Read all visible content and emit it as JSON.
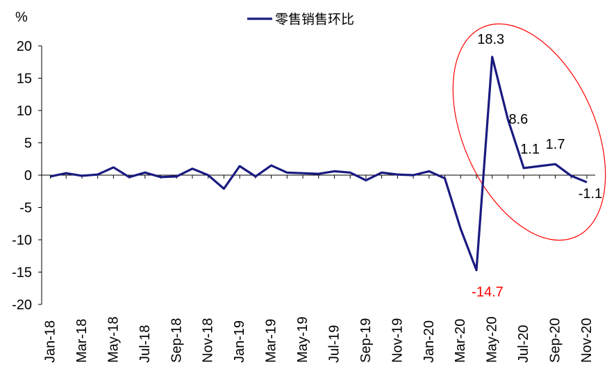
{
  "chart_data": {
    "type": "line",
    "ylabel": "%",
    "ylim": [
      -20,
      20
    ],
    "yticks": [
      20,
      15,
      10,
      5,
      0,
      -5,
      -10,
      -15,
      -20
    ],
    "legend_position": "top-center",
    "x": [
      "Jan-18",
      "Feb-18",
      "Mar-18",
      "Apr-18",
      "May-18",
      "Jun-18",
      "Jul-18",
      "Aug-18",
      "Sep-18",
      "Oct-18",
      "Nov-18",
      "Dec-18",
      "Jan-19",
      "Feb-19",
      "Mar-19",
      "Apr-19",
      "May-19",
      "Jun-19",
      "Jul-19",
      "Aug-19",
      "Sep-19",
      "Oct-19",
      "Nov-19",
      "Dec-19",
      "Jan-20",
      "Feb-20",
      "Mar-20",
      "Apr-20",
      "May-20",
      "Jun-20",
      "Jul-20",
      "Aug-20",
      "Sep-20",
      "Oct-20",
      "Nov-20"
    ],
    "x_tick_labels": [
      "Jan-18",
      "Mar-18",
      "May-18",
      "Jul-18",
      "Sep-18",
      "Nov-18",
      "Jan-19",
      "Mar-19",
      "May-19",
      "Jul-19",
      "Sep-19",
      "Nov-19",
      "Jan-20",
      "Mar-20",
      "May-20",
      "Jul-20",
      "Sep-20",
      "Nov-20"
    ],
    "series": [
      {
        "name": "零售销售环比",
        "color": "#1a1a80",
        "values": [
          -0.2,
          0.3,
          -0.1,
          0.1,
          1.2,
          -0.3,
          0.4,
          -0.3,
          -0.2,
          1.0,
          0.0,
          -2.1,
          1.4,
          -0.2,
          1.5,
          0.4,
          0.3,
          0.2,
          0.6,
          0.4,
          -0.8,
          0.4,
          0.1,
          0.0,
          0.6,
          -0.5,
          -8.3,
          -14.7,
          18.3,
          8.6,
          1.1,
          1.4,
          1.7,
          -0.1,
          -1.1
        ]
      }
    ],
    "annotations": [
      {
        "text": "18.3",
        "index": 28,
        "color": "#000000"
      },
      {
        "text": "8.6",
        "index": 29,
        "color": "#000000"
      },
      {
        "text": "1.1",
        "index": 30,
        "color": "#000000"
      },
      {
        "text": "1.7",
        "index": 32,
        "color": "#000000"
      },
      {
        "text": "-1.1",
        "index": 34,
        "color": "#000000"
      },
      {
        "text": "-14.7",
        "index": 27,
        "color": "#ff0000"
      }
    ],
    "highlight_ellipse_color": "#ff0000",
    "grid": false
  }
}
